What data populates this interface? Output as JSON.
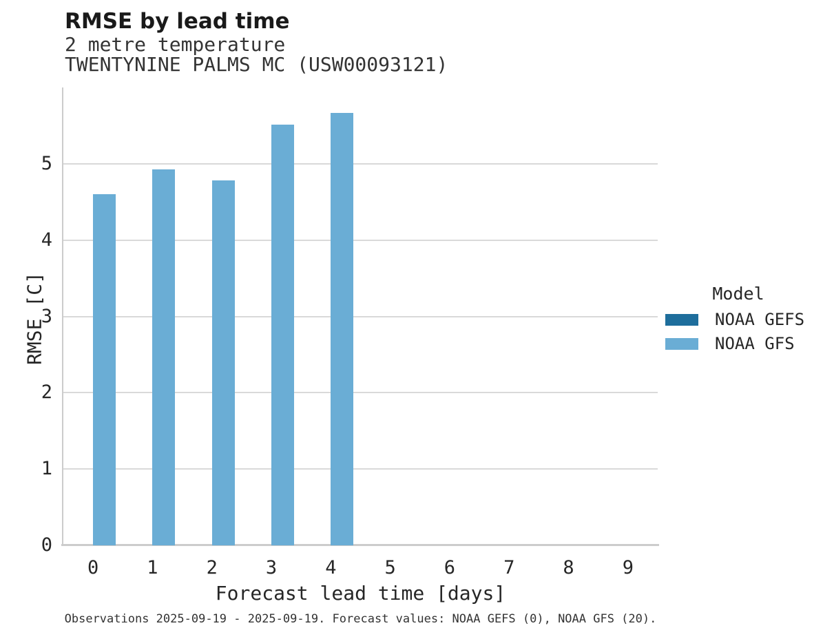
{
  "chart_data": {
    "type": "bar",
    "title": "RMSE by lead time",
    "subtitle_lines": [
      "2 metre temperature",
      "TWENTYNINE PALMS MC (USW00093121)"
    ],
    "xlabel": "Forecast lead time [days]",
    "ylabel": "RMSE [C]",
    "categories": [
      "0",
      "1",
      "2",
      "3",
      "4",
      "5",
      "6",
      "7",
      "8",
      "9"
    ],
    "yticks": [
      0,
      1,
      2,
      3,
      4,
      5
    ],
    "ylim": [
      0,
      6
    ],
    "grid": "horizontal-only",
    "legend": {
      "title": "Model",
      "position": "right-center"
    },
    "series": [
      {
        "name": "NOAA GEFS",
        "color": "#1e6e9c",
        "values": [
          null,
          null,
          null,
          null,
          null,
          null,
          null,
          null,
          null,
          null
        ]
      },
      {
        "name": "NOAA GFS",
        "color": "#6aadd5",
        "values": [
          4.6,
          4.93,
          4.78,
          5.51,
          5.67,
          null,
          null,
          null,
          null,
          null
        ]
      }
    ],
    "footnote": "Observations 2025-09-19 - 2025-09-19. Forecast values: NOAA GEFS (0), NOAA GFS (20)."
  },
  "colors": {
    "background": "#ffffff",
    "gridline": "#d9d9d9",
    "axis_spine": "#cccccc",
    "title_text": "#1a1a1a",
    "body_text": "#262626"
  }
}
